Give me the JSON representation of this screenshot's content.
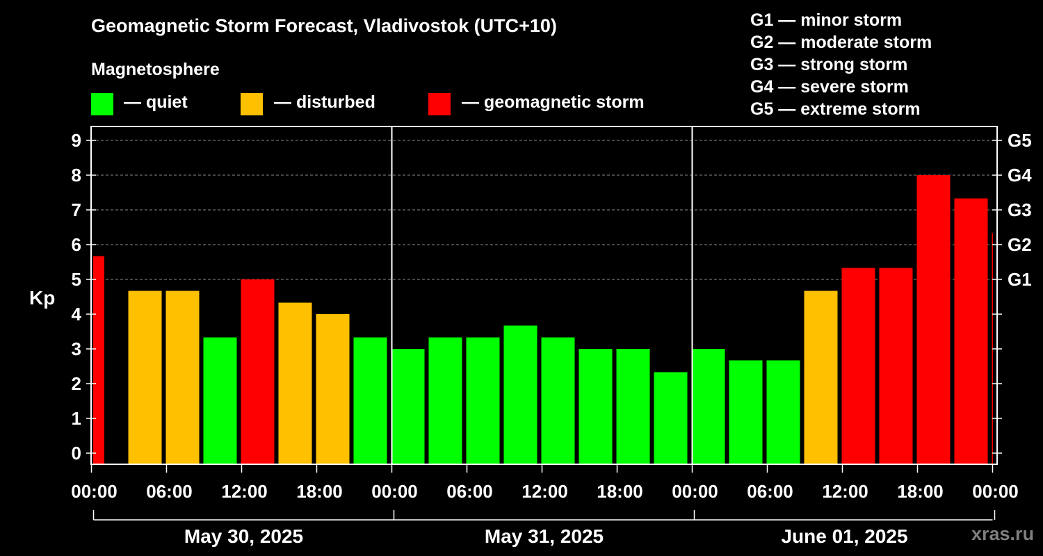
{
  "title": "Geomagnetic Storm Forecast, Vladivostok (UTC+10)",
  "legend": {
    "heading": "Magnetosphere",
    "items": [
      {
        "label": "— quiet",
        "color": "#00ff00"
      },
      {
        "label": "— disturbed",
        "color": "#ffc000"
      },
      {
        "label": "— geomagnetic storm",
        "color": "#ff0000"
      }
    ],
    "g_scale": [
      "G1 — minor storm",
      "G2 — moderate storm",
      "G3 — strong storm",
      "G4 — severe storm",
      "G5 — extreme storm"
    ]
  },
  "watermark": "xras.ru",
  "chart_data": {
    "type": "bar",
    "ylabel": "Kp",
    "ylim": [
      0,
      9
    ],
    "yticks": [
      "0",
      "1",
      "2",
      "3",
      "4",
      "5",
      "6",
      "7",
      "8",
      "9"
    ],
    "right_ticks": [
      {
        "value": 5,
        "label": "G1"
      },
      {
        "value": 6,
        "label": "G2"
      },
      {
        "value": 7,
        "label": "G3"
      },
      {
        "value": 8,
        "label": "G4"
      },
      {
        "value": 9,
        "label": "G5"
      }
    ],
    "grid": "horizontal dashed from Kp 5 to 9",
    "x_ticks": [
      "00:00",
      "06:00",
      "12:00",
      "18:00",
      "00:00",
      "06:00",
      "12:00",
      "18:00",
      "00:00",
      "06:00",
      "12:00",
      "18:00",
      "00:00"
    ],
    "days": [
      "May 30, 2025",
      "May 31, 2025",
      "June 01, 2025"
    ],
    "interval_hours": 3,
    "values": [
      5.67,
      4.67,
      4.67,
      3.33,
      5.0,
      4.33,
      4.0,
      3.33,
      3.0,
      3.33,
      3.33,
      3.67,
      3.33,
      3.0,
      3.0,
      2.33,
      3.0,
      2.67,
      2.67,
      4.67,
      5.33,
      5.33,
      8.0,
      7.33,
      6.33
    ],
    "colors": [
      "#ff0000",
      "#ffc000",
      "#ffc000",
      "#00ff00",
      "#ff0000",
      "#ffc000",
      "#ffc000",
      "#00ff00",
      "#00ff00",
      "#00ff00",
      "#00ff00",
      "#00ff00",
      "#00ff00",
      "#00ff00",
      "#00ff00",
      "#00ff00",
      "#00ff00",
      "#00ff00",
      "#00ff00",
      "#ffc000",
      "#ff0000",
      "#ff0000",
      "#ff0000",
      "#ff0000",
      "#ff0000"
    ]
  }
}
